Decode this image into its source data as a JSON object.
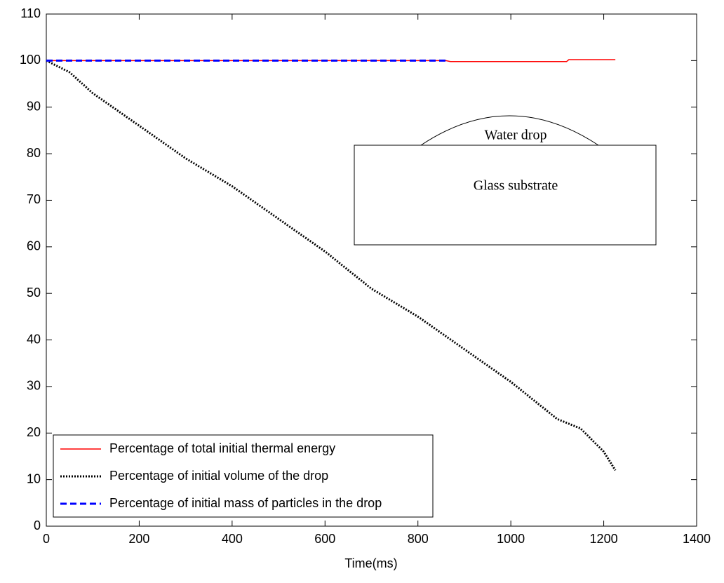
{
  "chart_data": {
    "type": "line",
    "x_label": "Time(ms)",
    "xlim": [
      0,
      1400
    ],
    "xticks": [
      0,
      200,
      400,
      600,
      800,
      1000,
      1200,
      1400
    ],
    "ylim": [
      0,
      110
    ],
    "yticks": [
      0,
      10,
      20,
      30,
      40,
      50,
      60,
      70,
      80,
      90,
      100,
      110
    ],
    "grid": false,
    "legend": "lower left",
    "series": [
      {
        "name": "Percentage of total initial thermal energy",
        "color": "#ff0000",
        "style": "solid",
        "x": [
          0,
          860,
          870,
          1120,
          1125,
          1225
        ],
        "values": [
          100,
          100,
          99.8,
          99.8,
          100.2,
          100.2
        ]
      },
      {
        "name": "Percentage of initial volume of the drop",
        "color": "#000000",
        "style": "dotted",
        "x": [
          0,
          50,
          100,
          200,
          300,
          400,
          500,
          600,
          700,
          800,
          900,
          1000,
          1100,
          1150,
          1200,
          1225
        ],
        "values": [
          100,
          97.5,
          93,
          86,
          79,
          73,
          66,
          59,
          51,
          45,
          38,
          31,
          23,
          21,
          16,
          12
        ]
      },
      {
        "name": "Percentage of initial mass of particles in the drop",
        "color": "#0000ff",
        "style": "dashed",
        "x": [
          0,
          860
        ],
        "values": [
          100,
          100
        ]
      }
    ],
    "annotations": [
      {
        "text": "Water drop"
      },
      {
        "text": "Glass substrate"
      }
    ]
  }
}
